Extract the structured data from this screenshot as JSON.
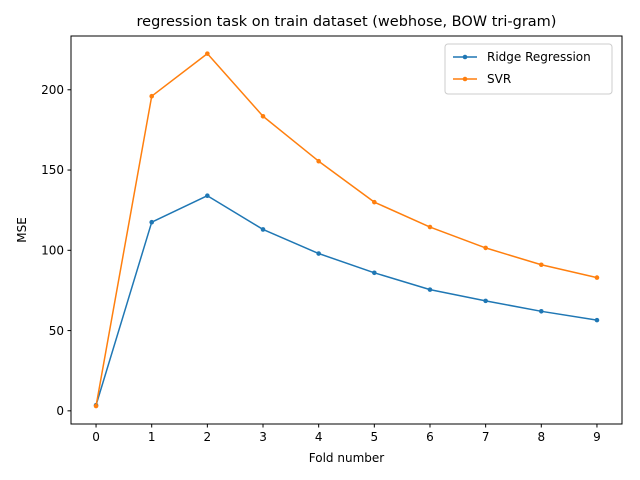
{
  "chart_data": {
    "type": "line",
    "title": "regression task on train dataset (webhose, BOW tri-gram)",
    "xlabel": "Fold number",
    "ylabel": "MSE",
    "x": [
      0,
      1,
      2,
      3,
      4,
      5,
      6,
      7,
      8,
      9
    ],
    "xticks": [
      "0",
      "1",
      "2",
      "3",
      "4",
      "5",
      "6",
      "7",
      "8",
      "9"
    ],
    "yticks": [
      0,
      50,
      100,
      150,
      200
    ],
    "xlim": [
      -0.45,
      9.45
    ],
    "ylim": [
      -8.2,
      233.5
    ],
    "grid": false,
    "legend": "upper right",
    "series": [
      {
        "name": "Ridge Regression",
        "color": "#1f77b4",
        "marker": "point",
        "values": [
          3.5,
          117.5,
          134.0,
          113.0,
          98.0,
          86.0,
          75.5,
          68.5,
          62.0,
          56.5
        ]
      },
      {
        "name": "SVR",
        "color": "#ff7f0e",
        "marker": "point",
        "values": [
          3.0,
          196.0,
          222.5,
          183.5,
          155.5,
          130.0,
          114.5,
          101.5,
          91.0,
          83.0
        ]
      }
    ]
  }
}
